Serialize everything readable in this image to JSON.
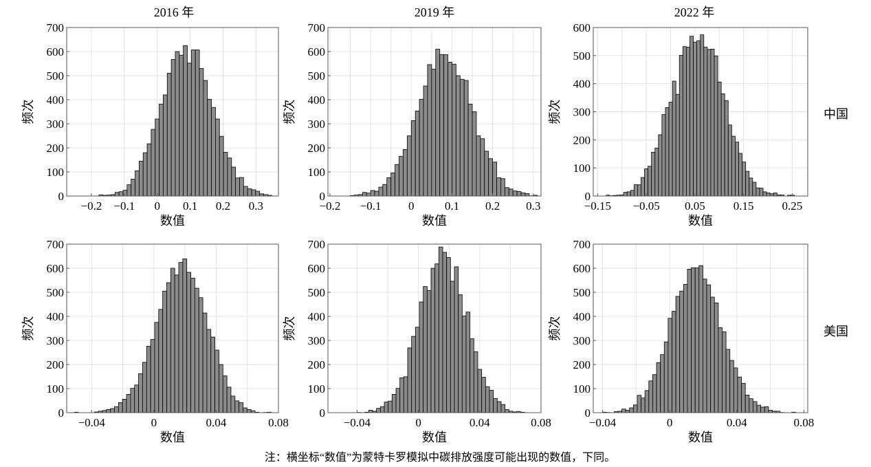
{
  "titles": [
    "2016 年",
    "2019 年",
    "2022 年"
  ],
  "row_labels": [
    "中国",
    "美国"
  ],
  "note": "注：横坐标“数值”为蒙特卡罗模拟中碳排放强度可能出现的数值，下同。",
  "colors": {
    "bar_fill": "#8c8c8c",
    "bar_edge": "#000000",
    "grid": "#e3e3e3",
    "axis": "#555555"
  },
  "chart_data": [
    {
      "type": "bar",
      "title": "2016 年",
      "row": "中国",
      "xlabel": "数值",
      "ylabel": "频次",
      "xlim": [
        -0.275,
        0.368
      ],
      "ylim": [
        0,
        700
      ],
      "xticks": [
        -0.2,
        -0.1,
        0,
        0.1,
        0.2,
        0.3
      ],
      "xtick_labels": [
        "−0.2",
        "−0.1",
        "0",
        "0.1",
        "0.2",
        "0.3"
      ],
      "xgrid": [
        -0.2,
        -0.1,
        0,
        0.1,
        0.2,
        0.3
      ],
      "yticks": [
        0,
        100,
        200,
        300,
        400,
        500,
        600,
        700
      ],
      "bin_start": -0.177,
      "bin_width": 0.0122,
      "counts": [
        5,
        3,
        4,
        6,
        15,
        18,
        24,
        47,
        70,
        105,
        145,
        180,
        217,
        277,
        320,
        382,
        420,
        510,
        567,
        600,
        585,
        625,
        552,
        607,
        607,
        530,
        480,
        402,
        368,
        320,
        248,
        182,
        158,
        120,
        75,
        77,
        40,
        30,
        26,
        20,
        9,
        6,
        3
      ]
    },
    {
      "type": "bar",
      "title": "2019 年",
      "row": "中国",
      "xlabel": "数值",
      "ylabel": "频次",
      "xlim": [
        -0.205,
        0.319
      ],
      "ylim": [
        0,
        700
      ],
      "xticks": [
        -0.2,
        -0.1,
        0,
        0.1,
        0.2,
        0.3
      ],
      "xtick_labels": [
        "−0.2",
        "−0.1",
        "0",
        "0.1",
        "0.2",
        "0.3"
      ],
      "xgrid": [
        -0.2,
        -0.15,
        -0.1,
        -0.05,
        0,
        0.05,
        0.1,
        0.15,
        0.2,
        0.25,
        0.3
      ],
      "yticks": [
        0,
        100,
        200,
        300,
        400,
        500,
        600,
        700
      ],
      "bin_start": -0.15,
      "bin_width": 0.01,
      "counts": [
        2,
        4,
        6,
        15,
        12,
        23,
        20,
        37,
        48,
        76,
        96,
        131,
        165,
        193,
        250,
        313,
        353,
        402,
        457,
        546,
        527,
        610,
        588,
        587,
        556,
        548,
        500,
        485,
        480,
        382,
        350,
        250,
        238,
        186,
        155,
        141,
        76,
        72,
        35,
        29,
        21,
        19,
        13,
        10,
        1,
        3
      ]
    },
    {
      "type": "bar",
      "title": "2022 年",
      "row": "中国",
      "xlabel": "数值",
      "ylabel": "频次",
      "xlim": [
        -0.159,
        0.282
      ],
      "ylim": [
        0,
        600
      ],
      "xticks": [
        -0.15,
        -0.05,
        0.05,
        0.15,
        0.25
      ],
      "xtick_labels": [
        "−0.15",
        "−0.05",
        "0.05",
        "0.15",
        "0.25"
      ],
      "xgrid": [
        -0.15,
        -0.1,
        -0.05,
        0,
        0.05,
        0.1,
        0.15,
        0.2,
        0.25
      ],
      "yticks": [
        0,
        100,
        200,
        300,
        400,
        500,
        600
      ],
      "bin_start": -0.1325,
      "bin_width": 0.00717,
      "counts": [
        3,
        1,
        2,
        3,
        4,
        13,
        15,
        20,
        40,
        40,
        66,
        97,
        106,
        156,
        171,
        218,
        290,
        315,
        334,
        409,
        362,
        501,
        532,
        530,
        569,
        548,
        553,
        574,
        530,
        522,
        523,
        499,
        406,
        364,
        340,
        253,
        213,
        192,
        152,
        121,
        88,
        64,
        49,
        29,
        28,
        15,
        11,
        8,
        11,
        4,
        4,
        0,
        3,
        3
      ]
    },
    {
      "type": "bar",
      "title": "",
      "row": "美国",
      "xlabel": "数值",
      "ylabel": "频次",
      "xlim": [
        -0.056,
        0.08
      ],
      "ylim": [
        0,
        700
      ],
      "xticks": [
        -0.04,
        0,
        0.04,
        0.08
      ],
      "xtick_labels": [
        "−0.04",
        "0",
        "0.04",
        "0.08"
      ],
      "xgrid": [
        -0.04,
        -0.02,
        0,
        0.02,
        0.04,
        0.06,
        0.08
      ],
      "yticks": [
        0,
        100,
        200,
        300,
        400,
        500,
        600,
        700
      ],
      "bin_start": -0.0511,
      "bin_width": 0.00258,
      "counts": [
        2,
        0,
        0,
        0,
        0,
        3,
        6,
        9,
        13,
        17,
        25,
        42,
        56,
        76,
        101,
        115,
        162,
        209,
        276,
        304,
        375,
        429,
        505,
        540,
        600,
        572,
        624,
        639,
        583,
        559,
        517,
        478,
        414,
        346,
        314,
        260,
        200,
        153,
        106,
        69,
        49,
        42,
        20,
        13,
        8,
        2,
        0,
        1,
        2
      ]
    },
    {
      "type": "bar",
      "title": "",
      "row": "美国",
      "xlabel": "数值",
      "ylabel": "频次",
      "xlim": [
        -0.059,
        0.08
      ],
      "ylim": [
        0,
        700
      ],
      "xticks": [
        -0.04,
        0,
        0.04,
        0.08
      ],
      "xtick_labels": [
        "−0.04",
        "0",
        "0.04",
        "0.08"
      ],
      "xgrid": [
        -0.04,
        -0.02,
        0,
        0.02,
        0.04,
        0.06
      ],
      "yticks": [
        0,
        100,
        200,
        300,
        400,
        500,
        600,
        700
      ],
      "bin_start": -0.04,
      "bin_width": 0.00254,
      "counts": [
        1,
        0,
        2,
        10,
        6,
        18,
        25,
        44,
        48,
        76,
        101,
        145,
        149,
        269,
        317,
        355,
        460,
        524,
        507,
        600,
        618,
        688,
        666,
        645,
        546,
        606,
        490,
        402,
        418,
        307,
        253,
        180,
        147,
        108,
        93,
        59,
        46,
        34,
        13,
        6,
        3,
        5,
        2
      ]
    },
    {
      "type": "bar",
      "title": "",
      "row": "美国",
      "xlabel": "数值",
      "ylabel": "频次",
      "xlim": [
        -0.0455,
        0.0823
      ],
      "ylim": [
        0,
        700
      ],
      "xticks": [
        -0.04,
        0,
        0.04,
        0.08
      ],
      "xtick_labels": [
        "−0.04",
        "0",
        "0.04",
        "0.08"
      ],
      "xgrid": [
        -0.04,
        -0.02,
        0,
        0.02,
        0.04,
        0.06,
        0.08
      ],
      "yticks": [
        0,
        100,
        200,
        300,
        400,
        500,
        600,
        700
      ],
      "bin_start": -0.04,
      "bin_width": 0.0023,
      "counts": [
        2,
        1,
        0,
        4,
        6,
        15,
        10,
        20,
        32,
        72,
        61,
        92,
        132,
        158,
        208,
        241,
        294,
        392,
        421,
        483,
        505,
        533,
        596,
        602,
        602,
        611,
        555,
        531,
        480,
        456,
        353,
        336,
        263,
        217,
        186,
        148,
        122,
        73,
        58,
        46,
        31,
        23,
        25,
        10,
        6,
        6,
        1,
        0,
        0,
        2
      ]
    }
  ]
}
